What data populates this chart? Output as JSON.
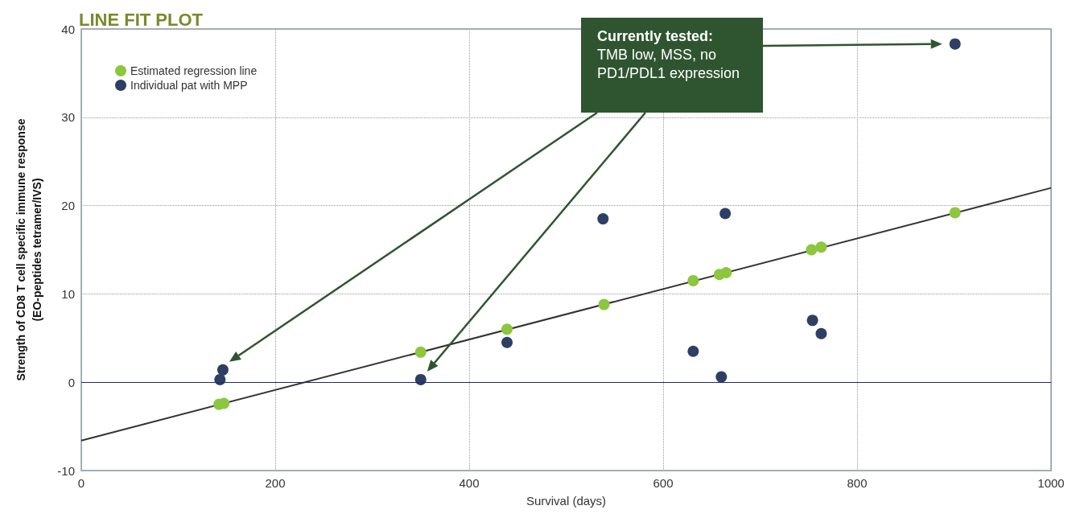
{
  "chart_data": {
    "type": "scatter",
    "title": "LINE FIT PLOT",
    "xlabel": "Survival (days)",
    "ylabel": "Strength of CD8 T cell specific immune response\n(EO-peptides tetramer/IVS)",
    "annotations": [
      "Currently tested:",
      "TMB low, MSS, no PD1/PDL1 expression"
    ],
    "series": [
      {
        "type": "line",
        "marker": "none",
        "color": "#333333",
        "x": [
          0,
          1000
        ],
        "values": [
          -6.6,
          22.0
        ]
      },
      {
        "name": "Estimated regression line",
        "color": "#8dc63f",
        "x": [
          142,
          147,
          350,
          439,
          539,
          631,
          658,
          665,
          753,
          763,
          901
        ],
        "values": [
          -2.5,
          -2.4,
          3.4,
          6.0,
          8.8,
          11.5,
          12.2,
          12.4,
          15.0,
          15.3,
          19.2
        ]
      },
      {
        "name": "Individual pat with MPP",
        "color": "#2e3f63",
        "x": [
          143,
          146,
          350,
          439,
          538,
          631,
          660,
          664,
          754,
          763,
          901
        ],
        "values": [
          0.3,
          1.4,
          0.3,
          4.5,
          18.5,
          3.5,
          0.6,
          19.1,
          7.0,
          5.5,
          38.3
        ]
      }
    ],
    "xlim": [
      0,
      1000
    ],
    "xticks": [
      0,
      200,
      400,
      600,
      800,
      1000
    ],
    "ylim": [
      -10,
      40
    ],
    "yticks": [
      -10,
      0,
      10,
      20,
      30,
      40
    ],
    "ref_lines": [
      {
        "axis": "y",
        "value": 0,
        "color": "#1f2a6b"
      }
    ],
    "grid": true,
    "legend": "top left",
    "marker": "circle"
  }
}
